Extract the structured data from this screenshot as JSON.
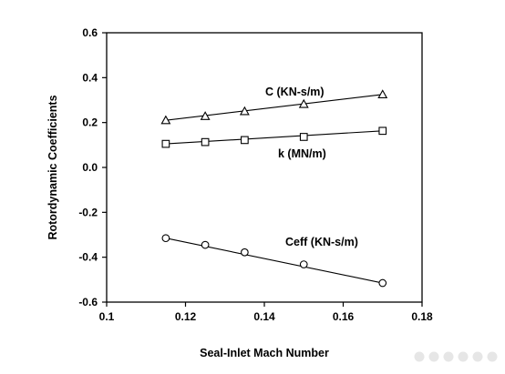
{
  "chart_data": {
    "type": "line",
    "title": "",
    "xlabel": "Seal-Inlet Mach Number",
    "ylabel": "Rotordynamic Coefficients",
    "xlim": [
      0.1,
      0.18
    ],
    "ylim": [
      -0.6,
      0.6
    ],
    "x_ticks": [
      "0.1",
      "0.12",
      "0.14",
      "0.16",
      "0.18"
    ],
    "y_ticks": [
      "0.6",
      "0.4",
      "0.2",
      "0.0",
      "-0.2",
      "-0.4",
      "-0.6"
    ],
    "grid": false,
    "legend": "none",
    "series": [
      {
        "name": "C (KN-s/m)",
        "marker": "triangle",
        "x": [
          0.115,
          0.125,
          0.135,
          0.15,
          0.17
        ],
        "y": [
          0.21,
          0.228,
          0.25,
          0.282,
          0.325
        ]
      },
      {
        "name": "k (MN/m)",
        "marker": "square",
        "x": [
          0.115,
          0.125,
          0.135,
          0.15,
          0.17
        ],
        "y": [
          0.105,
          0.113,
          0.122,
          0.136,
          0.163
        ]
      },
      {
        "name": "Ceff (KN-s/m)",
        "marker": "circle",
        "x": [
          0.115,
          0.125,
          0.135,
          0.15,
          0.17
        ],
        "y": [
          -0.315,
          -0.345,
          -0.378,
          -0.432,
          -0.515
        ]
      }
    ]
  }
}
